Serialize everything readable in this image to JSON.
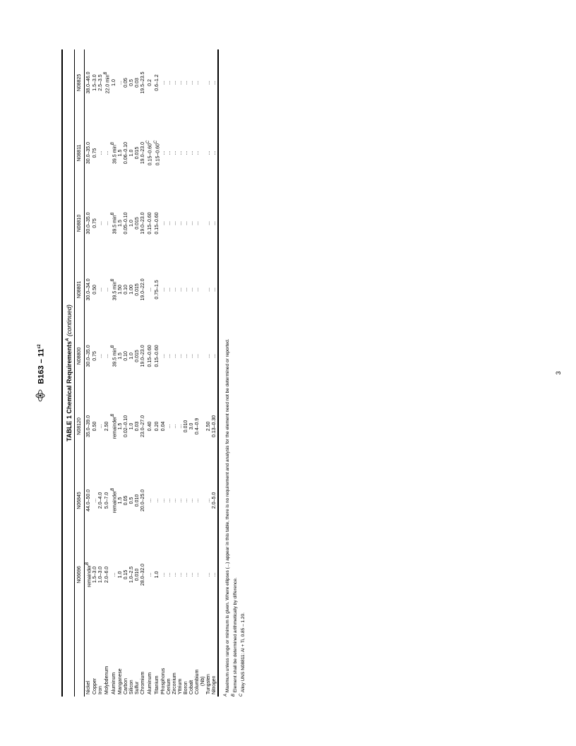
{
  "header": {
    "standard": "B163 – 11",
    "epsilon": "ε2"
  },
  "table": {
    "title": "TABLE 1 Chemical Requirements",
    "title_sup": "A",
    "continued": "(continued)",
    "columns": [
      "N06696",
      "N06845",
      "N08120",
      "N08800",
      "N08801",
      "N08810",
      "N08811",
      "N08825"
    ],
    "rows": [
      {
        "label": "Nickel",
        "values": [
          "remainder<B>",
          "44.0–50.0",
          "35.0–39.0",
          "30.0–35.0",
          "30.0–34.0",
          "30.0–35.0",
          "30.0–35.0",
          "38.0–46.0"
        ]
      },
      {
        "label": "Copper",
        "values": [
          "1.5–3.0",
          "...",
          "0.50",
          "0.75",
          "0.50",
          "0.75",
          "0.75",
          "1.5–3.0"
        ]
      },
      {
        "label": "Iron",
        "values": [
          "1.0–3.0",
          "2.0–4.0",
          "...",
          "...",
          "...",
          "...",
          "...",
          "2.5–3.5"
        ]
      },
      {
        "label": "Molybdenum",
        "values": [
          "2.0–6.0",
          "5.0–7.0",
          "2.50",
          "...",
          "...",
          "...",
          "...",
          "22.0 min<B>"
        ]
      },
      {
        "label": "Aluminum",
        "values": [
          "...",
          "remainder<B>",
          "remainder<B>",
          "39.5 min<B>",
          "39.5 min<B>",
          "39.5 min<B>",
          "39.5 min<B>",
          "1.0"
        ]
      },
      {
        "label": "Manganese",
        "values": [
          "1.0",
          "1.5",
          "1.5",
          "1.5",
          "1.50",
          "1.5",
          "1.5",
          "..."
        ]
      },
      {
        "label": "Carbon",
        "values": [
          "0.15",
          "0.05",
          "0.02–0.10",
          "0.10",
          "0.10",
          "0.05–0.10",
          "0.06–0.10",
          "0.05"
        ]
      },
      {
        "label": "Silicon",
        "values": [
          "1.0–2.5",
          "0.5",
          "1.0",
          "1.0",
          "1.00",
          "1.0",
          "1.0",
          "0.5"
        ]
      },
      {
        "label": "Sulfur",
        "values": [
          "0.010",
          "0.010",
          "0.03",
          "0.015",
          "0.015",
          "0.015",
          "0.015",
          "0.03"
        ]
      },
      {
        "label": "Chromium",
        "values": [
          "28.0–32.0",
          "20.0–25.0",
          "23.0–27.0",
          "19.0–23.0",
          "19.0–22.0",
          "19.0–23.0",
          "19.0–23.0",
          "19.5–23.5"
        ]
      },
      {
        "label": "Aluminum",
        "values": [
          "...",
          "...",
          "0.40",
          "0.15–0.60",
          "...",
          "0.15–0.60",
          "0.15–0.60<C>",
          "0.2"
        ]
      },
      {
        "label": "Titanium",
        "values": [
          "1.0",
          "...",
          "0.20",
          "0.15–0.60",
          "0.75–1.5",
          "0.15–0.60",
          "0.15–0.60<C>",
          "0.6–1.2"
        ]
      },
      {
        "label": "Phosphorus",
        "values": [
          "...",
          "...",
          "0.04",
          "...",
          "...",
          "...",
          "...",
          "..."
        ]
      },
      {
        "label": "Cerium",
        "values": [
          "...",
          "...",
          "...",
          "...",
          "...",
          "...",
          "...",
          "..."
        ]
      },
      {
        "label": "Zirconium",
        "values": [
          "...",
          "...",
          "...",
          "...",
          "...",
          "...",
          "...",
          "..."
        ]
      },
      {
        "label": "Yttrium",
        "values": [
          "...",
          "...",
          "...",
          "...",
          "...",
          "...",
          "...",
          "..."
        ]
      },
      {
        "label": "Boron",
        "values": [
          "...",
          "...",
          "0.010",
          "...",
          "...",
          "...",
          "...",
          "..."
        ]
      },
      {
        "label": "Cobalt",
        "values": [
          "...",
          "...",
          "3.0",
          "...",
          "...",
          "...",
          "...",
          "..."
        ]
      },
      {
        "label": "Columbium",
        "values": [
          "...",
          "...",
          "0.4–0.9",
          "...",
          "...",
          "...",
          "...",
          "..."
        ]
      },
      {
        "label": "(Nb)",
        "values": [
          "",
          "",
          "",
          "",
          "",
          "",
          "",
          ""
        ],
        "indent": true
      },
      {
        "label": "Tungsten",
        "values": [
          "...",
          "...",
          "2.50",
          "...",
          "...",
          "...",
          "...",
          "..."
        ]
      },
      {
        "label": "Nitrogen",
        "values": [
          "...",
          "2.0–5.0",
          "0.13–0.30",
          "...",
          "...",
          "...",
          "...",
          "..."
        ]
      }
    ],
    "footnotes": [
      {
        "marker": "A",
        "text": "Maximum unless range or minimum is given. Where ellipses (...) appear in this table, there is no requirement and analysis for the element need not be determined or reported."
      },
      {
        "marker": "B",
        "text": "Element shall be determined arithmetically by difference."
      },
      {
        "marker": "C",
        "text": "Alloy UNS N08811: Al + Ti, 0.85 – 1.20."
      }
    ]
  },
  "page_number": "3"
}
